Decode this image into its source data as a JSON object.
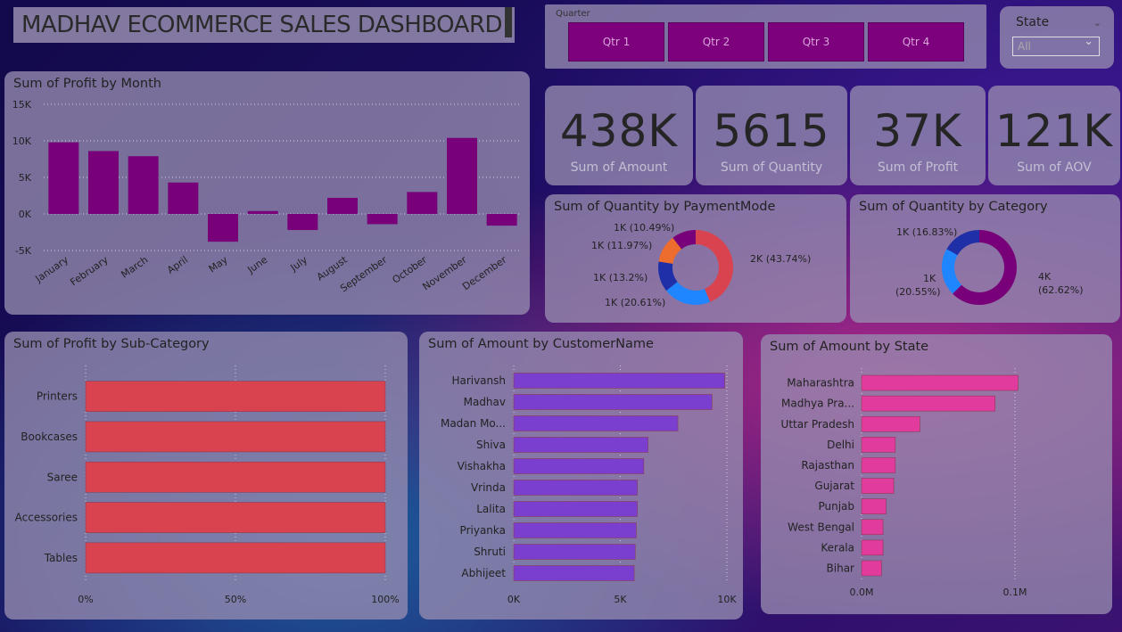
{
  "dashboard": {
    "title": "MADHAV ECOMMERCE SALES DASHBOARD"
  },
  "slicer_quarter": {
    "label": "Quarter",
    "options": [
      "Qtr 1",
      "Qtr 2",
      "Qtr 3",
      "Qtr 4"
    ]
  },
  "slicer_state": {
    "label": "State",
    "selected": "All"
  },
  "kpis": [
    {
      "value": "438K",
      "label": "Sum of Amount"
    },
    {
      "value": "5615",
      "label": "Sum of Quantity"
    },
    {
      "value": "37K",
      "label": "Sum of Profit"
    },
    {
      "value": "121K",
      "label": "Sum of AOV"
    }
  ],
  "colors": {
    "purple": "#780078",
    "red": "#d9434f",
    "violet": "#7b3fcf",
    "pink": "#e23b9e",
    "blue": "#1f86ff",
    "navy": "#1f2fa8",
    "orange": "#ec6d2e"
  },
  "chart_data": [
    {
      "id": "profit_by_month",
      "type": "bar",
      "title": "Sum of Profit by Month",
      "categories": [
        "January",
        "February",
        "March",
        "April",
        "May",
        "June",
        "July",
        "August",
        "September",
        "October",
        "November",
        "December"
      ],
      "values": [
        9800,
        8600,
        7900,
        4300,
        -3800,
        400,
        -2200,
        2200,
        -1400,
        3000,
        10400,
        -1600
      ],
      "ylim": [
        -5000,
        15000
      ],
      "yticks": [
        "15K",
        "10K",
        "5K",
        "0K",
        "-5K"
      ],
      "ytick_values": [
        15000,
        10000,
        5000,
        0,
        -5000
      ]
    },
    {
      "id": "qty_by_paymentmode",
      "type": "pie",
      "title": "Sum of Quantity by PaymentMode",
      "values": [
        43.74,
        20.61,
        13.2,
        11.97,
        10.49
      ],
      "labels": [
        "2K (43.74%)",
        "1K (20.61%)",
        "1K (13.2%)",
        "1K (11.97%)",
        "1K (10.49%)"
      ]
    },
    {
      "id": "qty_by_category",
      "type": "pie",
      "title": "Sum of Quantity by Category",
      "values": [
        62.62,
        20.55,
        16.83
      ],
      "labels": [
        "4K (62.62%)",
        "1K (20.55%)",
        "1K (16.83%)"
      ],
      "label_lines": [
        [
          "4K",
          "(62.62%)"
        ],
        [
          "1K",
          "(20.55%)"
        ],
        [
          "1K (16.83%)"
        ]
      ]
    },
    {
      "id": "profit_by_subcategory",
      "type": "bar",
      "orientation": "horizontal",
      "title": "Sum of Profit by Sub-Category",
      "categories": [
        "Printers",
        "Bookcases",
        "Saree",
        "Accessories",
        "Tables"
      ],
      "values": [
        100,
        100,
        100,
        100,
        100
      ],
      "xlim": [
        0,
        100
      ],
      "xticks": [
        "0%",
        "50%",
        "100%"
      ],
      "xtick_values": [
        0,
        50,
        100
      ]
    },
    {
      "id": "amount_by_customer",
      "type": "bar",
      "orientation": "horizontal",
      "title": "Sum of Amount by CustomerName",
      "categories": [
        "Harivansh",
        "Madhav",
        "Madan Mo...",
        "Shiva",
        "Vishakha",
        "Vrinda",
        "Lalita",
        "Priyanka",
        "Shruti",
        "Abhijeet"
      ],
      "values": [
        9900,
        9300,
        7700,
        6300,
        6100,
        5800,
        5800,
        5750,
        5700,
        5650
      ],
      "xlim": [
        0,
        10000
      ],
      "xticks": [
        "0K",
        "5K",
        "10K"
      ],
      "xtick_values": [
        0,
        5000,
        10000
      ]
    },
    {
      "id": "amount_by_state",
      "type": "bar",
      "orientation": "horizontal",
      "title": "Sum of Amount by State",
      "categories": [
        "Maharashtra",
        "Madhya Pra...",
        "Uttar Pradesh",
        "Delhi",
        "Rajasthan",
        "Gujarat",
        "Punjab",
        "West Bengal",
        "Kerala",
        "Bihar"
      ],
      "values": [
        102000,
        87000,
        38000,
        22000,
        22000,
        21000,
        16000,
        14000,
        14000,
        13000
      ],
      "xlim": [
        0,
        100000
      ],
      "xticks": [
        "0.0M",
        "0.1M"
      ],
      "xtick_values": [
        0,
        100000
      ]
    }
  ]
}
